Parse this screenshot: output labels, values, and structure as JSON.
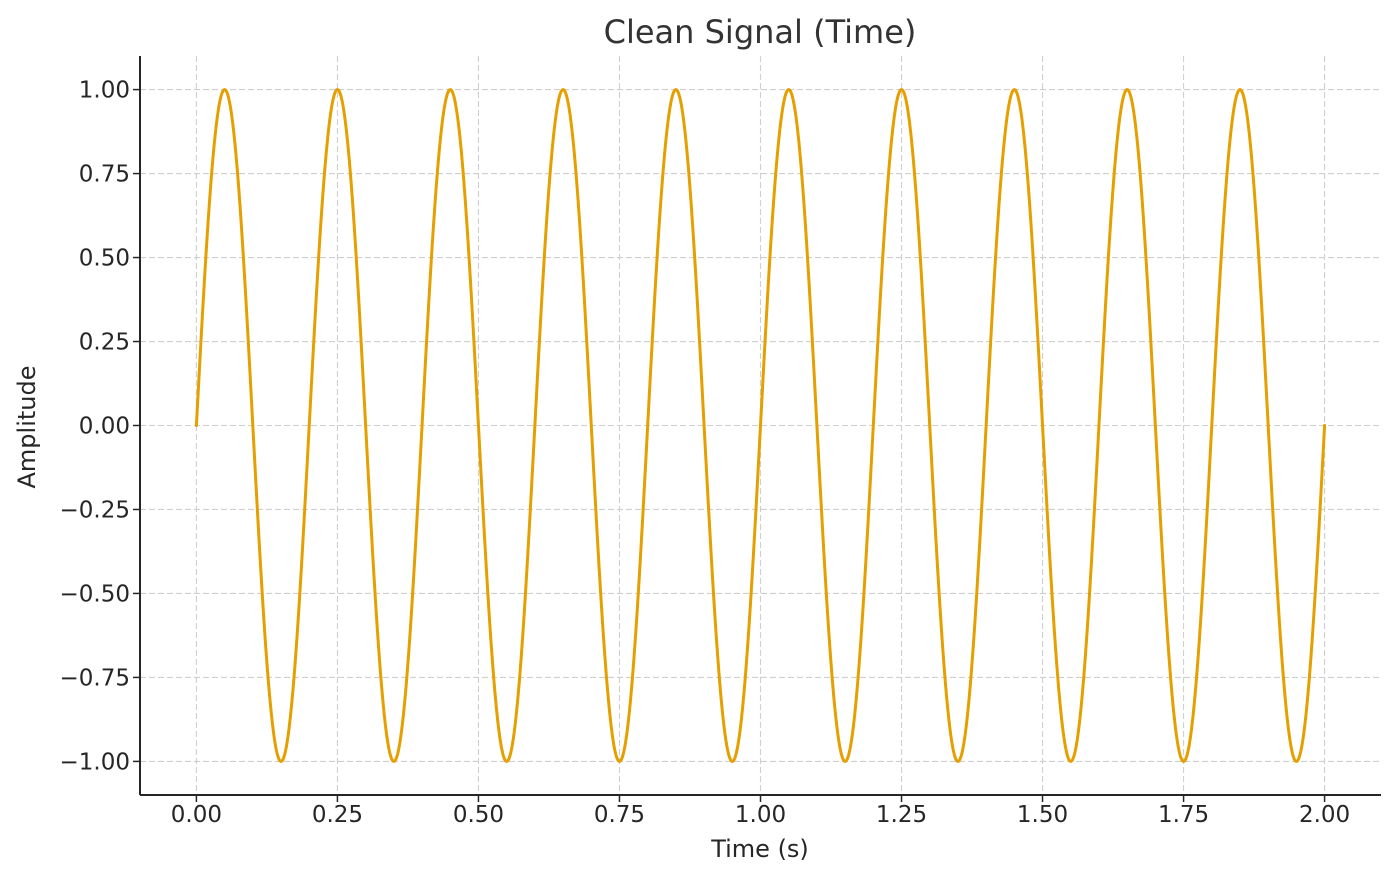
{
  "chart_data": {
    "type": "line",
    "title": "Clean Signal (Time)",
    "xlabel": "Time (s)",
    "ylabel": "Amplitude",
    "xlim": [
      -0.1,
      2.1
    ],
    "ylim": [
      -1.1,
      1.1
    ],
    "x_ticks": [
      0.0,
      0.25,
      0.5,
      0.75,
      1.0,
      1.25,
      1.5,
      1.75,
      2.0
    ],
    "x_tick_labels": [
      "0.00",
      "0.25",
      "0.50",
      "0.75",
      "1.00",
      "1.25",
      "1.50",
      "1.75",
      "2.00"
    ],
    "y_ticks": [
      1.0,
      0.75,
      0.5,
      0.25,
      0.0,
      -0.25,
      -0.5,
      -0.75,
      -1.0
    ],
    "y_tick_labels": [
      "1.00",
      "0.75",
      "0.50",
      "0.25",
      "0.00",
      "−0.25",
      "−0.50",
      "−0.75",
      "−1.00"
    ],
    "grid": true,
    "series": [
      {
        "function": "sin",
        "frequency_hz": 5,
        "amplitude": 1.0,
        "x_start": 0.0,
        "x_end": 2.0,
        "first_point": [
          0.0,
          0.0
        ],
        "last_point": [
          2.0,
          -0.06
        ],
        "peaks_x": [
          0.05,
          0.25,
          0.45,
          0.65,
          0.85,
          1.05,
          1.25,
          1.45,
          1.65,
          1.85
        ],
        "troughs_x": [
          0.15,
          0.35,
          0.55,
          0.75,
          0.95,
          1.15,
          1.35,
          1.55,
          1.75,
          1.95
        ],
        "color": "#E69F00"
      }
    ]
  }
}
